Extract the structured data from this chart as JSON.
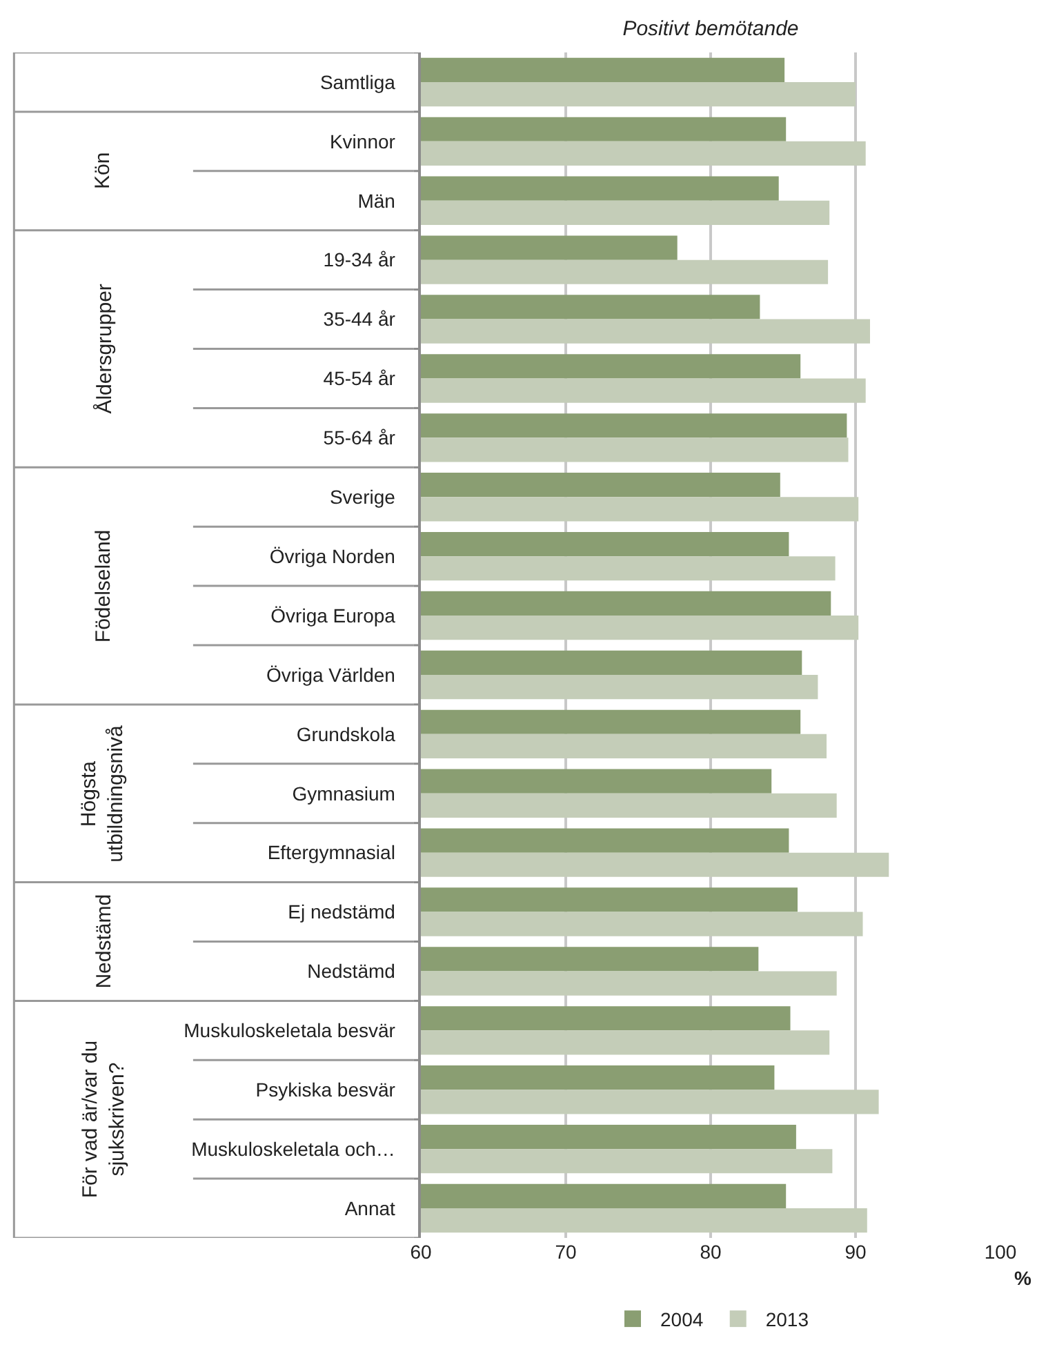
{
  "chart_data": {
    "type": "bar",
    "orientation": "horizontal",
    "title": "Positivt bemötande",
    "xlabel": "%",
    "categories": [
      "Samtliga",
      "Kvinnor",
      "Män",
      "19-34 år",
      "35-44 år",
      "45-54 år",
      "55-64 år",
      "Sverige",
      "Övriga Norden",
      "Övriga Europa",
      "Övriga Världen",
      "Grundskola",
      "Gymnasium",
      "Eftergymnasial",
      "Ej nedstämd",
      "Nedstämd",
      "Muskuloskeletala besvär",
      "Psykiska besvär",
      "Muskuloskeletala och…",
      "Annat"
    ],
    "series": [
      {
        "name": "2004",
        "color": "#8a9e72",
        "values": [
          85.1,
          85.2,
          84.7,
          77.7,
          83.4,
          86.2,
          89.4,
          84.8,
          85.4,
          88.3,
          86.3,
          86.2,
          84.2,
          85.4,
          86.0,
          83.3,
          85.5,
          84.4,
          85.9,
          85.2
        ]
      },
      {
        "name": "2013",
        "color": "#c4cdb8",
        "values": [
          90.0,
          90.7,
          88.2,
          88.1,
          91.0,
          90.7,
          89.5,
          90.2,
          88.6,
          90.2,
          87.4,
          88.0,
          88.7,
          92.3,
          90.5,
          88.7,
          88.2,
          91.6,
          88.4,
          90.8
        ]
      }
    ],
    "annotations": [
      {
        "text": "Kön",
        "y": "Kvinnor"
      },
      {
        "text": "Åldersgrupper",
        "y": "19-34 år"
      },
      {
        "text": "Födelseland",
        "y": "Sverige"
      },
      {
        "text": "Högsta\nutbildningsnivå",
        "y": "Grundskola"
      },
      {
        "text": "Nedstämd",
        "y": "Ej nedstämd"
      },
      {
        "text": "För vad är/var du\nsjukskriven?",
        "y": "Muskuloskeletala besvär"
      }
    ],
    "xlim": [
      60,
      100
    ],
    "xticks": [
      60,
      70,
      80,
      90,
      100
    ],
    "grid": "x",
    "legend": "bottom"
  }
}
